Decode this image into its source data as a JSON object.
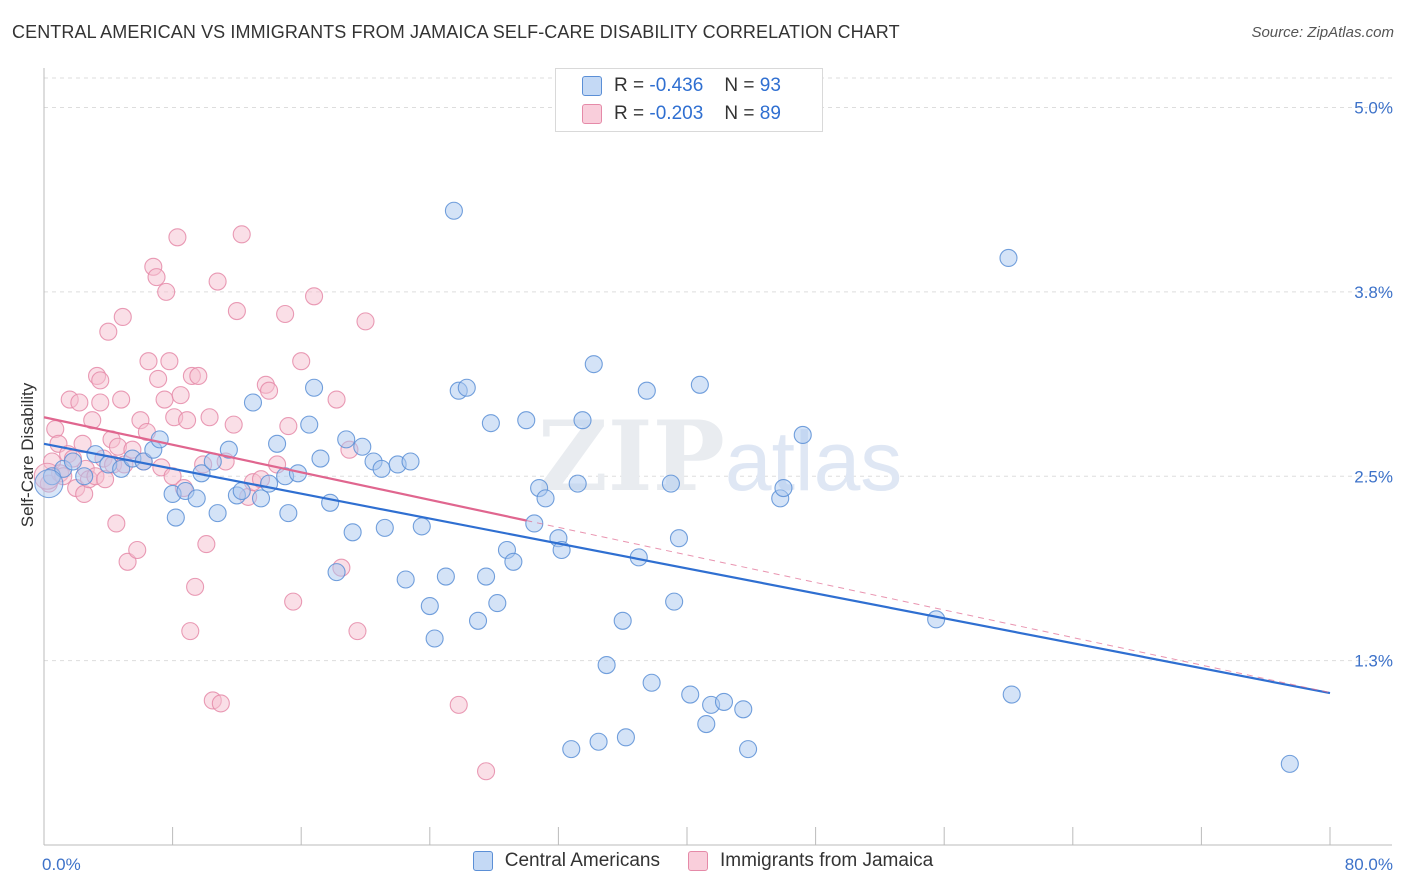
{
  "header": {
    "title": "CENTRAL AMERICAN VS IMMIGRANTS FROM JAMAICA SELF-CARE DISABILITY CORRELATION CHART",
    "source": "Source: ZipAtlas.com"
  },
  "legend": {
    "rows": [
      {
        "r_label": "R =",
        "r_value": "-0.436",
        "n_label": "N =",
        "n_value": "93"
      },
      {
        "r_label": "R =",
        "r_value": "-0.203",
        "n_label": "N =",
        "n_value": "89"
      }
    ]
  },
  "colors": {
    "blue_fill": "#a9c8f0",
    "blue_stroke": "#5b8fd6",
    "blue_line": "#2f6fd1",
    "pink_fill": "#f6bfd0",
    "pink_stroke": "#e58aa8",
    "pink_line": "#e0668f",
    "tick_text": "#3d72c9",
    "grid": "#dddddd"
  },
  "chart_data": {
    "type": "scatter",
    "title": "CENTRAL AMERICAN VS IMMIGRANTS FROM JAMAICA SELF-CARE DISABILITY CORRELATION CHART",
    "xlabel": "",
    "ylabel": "Self-Care Disability",
    "xlim": [
      0,
      80
    ],
    "ylim": [
      0.0,
      5.2
    ],
    "x_tick_labels": [
      "0.0%",
      "80.0%"
    ],
    "y_ticks": [
      1.25,
      2.5,
      3.75,
      5.0
    ],
    "y_tick_labels": [
      "1.3%",
      "2.5%",
      "3.8%",
      "5.0%"
    ],
    "grid": true,
    "legend_position": "top-center",
    "watermark": "ZIPatlas",
    "series": [
      {
        "name": "Central Americans",
        "color": "#5b8fd6",
        "trend": {
          "x0": 0,
          "y0": 2.72,
          "x1": 80,
          "y1": 1.03
        },
        "points": [
          [
            0.5,
            2.5
          ],
          [
            1.2,
            2.55
          ],
          [
            1.8,
            2.6
          ],
          [
            2.5,
            2.5
          ],
          [
            3.2,
            2.65
          ],
          [
            4.0,
            2.58
          ],
          [
            4.8,
            2.55
          ],
          [
            5.5,
            2.62
          ],
          [
            6.2,
            2.6
          ],
          [
            6.8,
            2.68
          ],
          [
            7.2,
            2.75
          ],
          [
            8.0,
            2.38
          ],
          [
            8.2,
            2.22
          ],
          [
            8.8,
            2.4
          ],
          [
            9.5,
            2.35
          ],
          [
            9.8,
            2.52
          ],
          [
            10.5,
            2.6
          ],
          [
            10.8,
            2.25
          ],
          [
            11.5,
            2.68
          ],
          [
            12.0,
            2.37
          ],
          [
            12.3,
            2.4
          ],
          [
            13.0,
            3.0
          ],
          [
            13.5,
            2.35
          ],
          [
            14.0,
            2.45
          ],
          [
            14.5,
            2.72
          ],
          [
            15.0,
            2.5
          ],
          [
            15.2,
            2.25
          ],
          [
            15.8,
            2.52
          ],
          [
            16.5,
            2.85
          ],
          [
            16.8,
            3.1
          ],
          [
            17.2,
            2.62
          ],
          [
            17.8,
            2.32
          ],
          [
            18.2,
            1.85
          ],
          [
            18.8,
            2.75
          ],
          [
            19.2,
            2.12
          ],
          [
            19.8,
            2.7
          ],
          [
            20.5,
            2.6
          ],
          [
            21.0,
            2.55
          ],
          [
            21.2,
            2.15
          ],
          [
            22.0,
            2.58
          ],
          [
            22.5,
            1.8
          ],
          [
            22.8,
            2.6
          ],
          [
            23.5,
            2.16
          ],
          [
            24.0,
            1.62
          ],
          [
            24.3,
            1.4
          ],
          [
            25.0,
            1.82
          ],
          [
            25.5,
            4.3
          ],
          [
            25.8,
            3.08
          ],
          [
            26.3,
            3.1
          ],
          [
            27.0,
            1.52
          ],
          [
            27.5,
            1.82
          ],
          [
            27.8,
            2.86
          ],
          [
            28.2,
            1.64
          ],
          [
            28.8,
            2.0
          ],
          [
            29.2,
            1.92
          ],
          [
            30.0,
            2.88
          ],
          [
            30.5,
            2.18
          ],
          [
            30.8,
            2.42
          ],
          [
            31.2,
            2.35
          ],
          [
            32.0,
            2.08
          ],
          [
            32.2,
            2.0
          ],
          [
            32.8,
            0.65
          ],
          [
            33.2,
            2.45
          ],
          [
            33.5,
            2.88
          ],
          [
            34.2,
            3.26
          ],
          [
            34.5,
            0.7
          ],
          [
            35.0,
            1.22
          ],
          [
            36.0,
            1.52
          ],
          [
            36.2,
            0.73
          ],
          [
            37.0,
            1.95
          ],
          [
            37.5,
            3.08
          ],
          [
            37.8,
            1.1
          ],
          [
            39.0,
            2.45
          ],
          [
            39.5,
            2.08
          ],
          [
            39.2,
            1.65
          ],
          [
            40.2,
            1.02
          ],
          [
            40.8,
            3.12
          ],
          [
            41.2,
            0.82
          ],
          [
            41.5,
            0.95
          ],
          [
            42.3,
            0.97
          ],
          [
            43.5,
            0.92
          ],
          [
            43.8,
            0.65
          ],
          [
            45.8,
            2.35
          ],
          [
            46.0,
            2.42
          ],
          [
            47.2,
            2.78
          ],
          [
            55.5,
            1.53
          ],
          [
            60.0,
            3.98
          ],
          [
            60.2,
            1.02
          ],
          [
            77.5,
            0.55
          ]
        ]
      },
      {
        "name": "Immigrants from Jamaica",
        "color": "#e58aa8",
        "trend": {
          "x0": 0,
          "y0": 2.9,
          "x1": 30,
          "y1": 2.2
        },
        "points": [
          [
            0.3,
            2.45
          ],
          [
            0.5,
            2.6
          ],
          [
            0.7,
            2.82
          ],
          [
            0.9,
            2.72
          ],
          [
            1.0,
            2.52
          ],
          [
            1.2,
            2.5
          ],
          [
            1.5,
            2.65
          ],
          [
            1.6,
            3.02
          ],
          [
            1.8,
            2.62
          ],
          [
            2.0,
            2.42
          ],
          [
            2.2,
            3.0
          ],
          [
            2.4,
            2.72
          ],
          [
            2.5,
            2.38
          ],
          [
            2.6,
            2.55
          ],
          [
            2.8,
            2.48
          ],
          [
            3.0,
            2.88
          ],
          [
            3.2,
            2.5
          ],
          [
            3.3,
            3.18
          ],
          [
            3.5,
            3.15
          ],
          [
            3.5,
            3.0
          ],
          [
            3.7,
            2.62
          ],
          [
            3.8,
            2.48
          ],
          [
            4.0,
            3.48
          ],
          [
            4.2,
            2.75
          ],
          [
            4.3,
            2.58
          ],
          [
            4.5,
            2.18
          ],
          [
            4.6,
            2.7
          ],
          [
            4.8,
            3.02
          ],
          [
            4.9,
            3.58
          ],
          [
            5.0,
            2.58
          ],
          [
            5.2,
            1.92
          ],
          [
            5.5,
            2.68
          ],
          [
            5.8,
            2.0
          ],
          [
            6.0,
            2.88
          ],
          [
            6.2,
            2.6
          ],
          [
            6.4,
            2.8
          ],
          [
            6.5,
            3.28
          ],
          [
            6.8,
            3.92
          ],
          [
            7.0,
            3.85
          ],
          [
            7.1,
            3.16
          ],
          [
            7.3,
            2.56
          ],
          [
            7.5,
            3.02
          ],
          [
            7.6,
            3.75
          ],
          [
            7.8,
            3.28
          ],
          [
            8.0,
            2.5
          ],
          [
            8.1,
            2.9
          ],
          [
            8.3,
            4.12
          ],
          [
            8.5,
            3.05
          ],
          [
            8.7,
            2.42
          ],
          [
            8.9,
            2.88
          ],
          [
            9.1,
            1.45
          ],
          [
            9.2,
            3.18
          ],
          [
            9.4,
            1.75
          ],
          [
            9.6,
            3.18
          ],
          [
            9.9,
            2.58
          ],
          [
            10.1,
            2.04
          ],
          [
            10.3,
            2.9
          ],
          [
            10.5,
            0.98
          ],
          [
            10.8,
            3.82
          ],
          [
            11.0,
            0.96
          ],
          [
            11.3,
            2.6
          ],
          [
            11.8,
            2.85
          ],
          [
            12.0,
            3.62
          ],
          [
            12.3,
            4.14
          ],
          [
            12.7,
            2.36
          ],
          [
            13.0,
            2.46
          ],
          [
            13.5,
            2.48
          ],
          [
            13.8,
            3.12
          ],
          [
            14.0,
            3.08
          ],
          [
            14.5,
            2.58
          ],
          [
            15.0,
            3.6
          ],
          [
            15.2,
            2.84
          ],
          [
            15.5,
            1.65
          ],
          [
            16.0,
            3.28
          ],
          [
            16.8,
            3.72
          ],
          [
            18.2,
            3.02
          ],
          [
            18.5,
            1.88
          ],
          [
            19.0,
            2.68
          ],
          [
            19.5,
            1.45
          ],
          [
            20.0,
            3.55
          ],
          [
            25.8,
            0.95
          ],
          [
            27.5,
            0.5
          ]
        ]
      }
    ]
  }
}
